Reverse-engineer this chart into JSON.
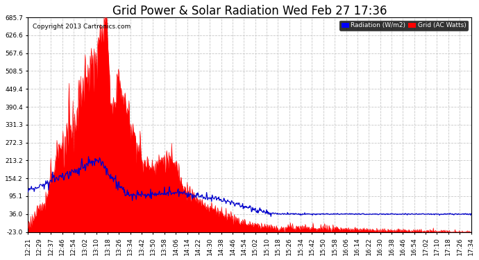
{
  "title": "Grid Power & Solar Radiation Wed Feb 27 17:36",
  "copyright": "Copyright 2013 Cartronics.com",
  "background_color": "#ffffff",
  "plot_bg_color": "#ffffff",
  "grid_color": "#c8c8c8",
  "ylim": [
    -23.0,
    685.7
  ],
  "yticks": [
    -23.0,
    36.0,
    95.1,
    154.2,
    213.2,
    272.3,
    331.3,
    390.4,
    449.4,
    508.5,
    567.6,
    626.6,
    685.7
  ],
  "legend_radiation_color": "#0000ff",
  "legend_grid_color": "#ff0000",
  "radiation_line_color": "#0000cc",
  "grid_fill_color": "#ff0000",
  "xtick_labels": [
    "12:21",
    "12:29",
    "12:37",
    "12:46",
    "12:54",
    "13:02",
    "13:10",
    "13:18",
    "13:26",
    "13:34",
    "13:42",
    "13:50",
    "13:58",
    "14:06",
    "14:14",
    "14:22",
    "14:30",
    "14:38",
    "14:46",
    "14:54",
    "15:02",
    "15:10",
    "15:18",
    "15:26",
    "15:34",
    "15:42",
    "15:50",
    "15:58",
    "16:06",
    "16:14",
    "16:22",
    "16:30",
    "16:38",
    "16:46",
    "16:54",
    "17:02",
    "17:10",
    "17:18",
    "17:26",
    "17:34"
  ],
  "title_fontsize": 12,
  "axis_fontsize": 6.5,
  "copyright_fontsize": 6.5
}
